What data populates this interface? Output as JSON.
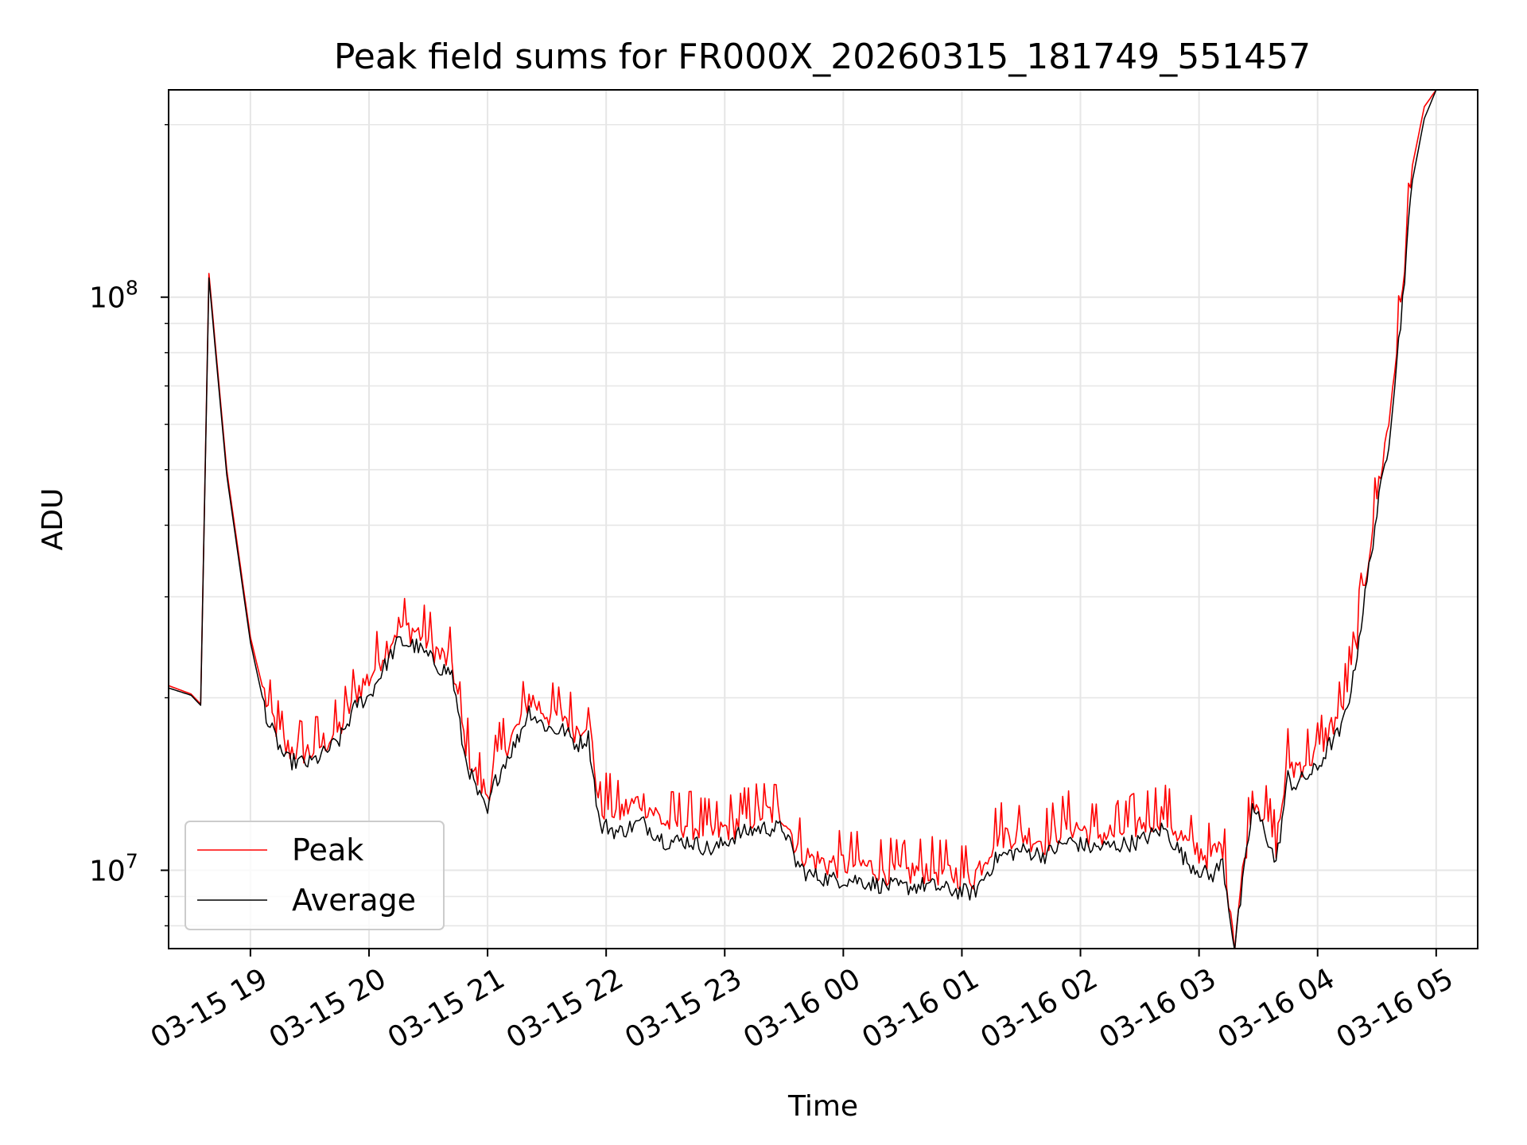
{
  "chart_data": {
    "type": "line",
    "title": "Peak field sums for FR000X_20260315_181749_551457",
    "xlabel": "Time",
    "ylabel": "ADU",
    "yscale": "log",
    "ylim": [
      7300000,
      230000000
    ],
    "xlim_hours": [
      -0.69,
      10.35
    ],
    "x_unit": "hours after 03-15 19:00",
    "x_ticks": [
      {
        "label": "03-15 19",
        "hours": 0
      },
      {
        "label": "03-15 20",
        "hours": 1
      },
      {
        "label": "03-15 21",
        "hours": 2
      },
      {
        "label": "03-15 22",
        "hours": 3
      },
      {
        "label": "03-15 23",
        "hours": 4
      },
      {
        "label": "03-16 00",
        "hours": 5
      },
      {
        "label": "03-16 01",
        "hours": 6
      },
      {
        "label": "03-16 02",
        "hours": 7
      },
      {
        "label": "03-16 03",
        "hours": 8
      },
      {
        "label": "03-16 04",
        "hours": 9
      },
      {
        "label": "03-16 05",
        "hours": 10
      }
    ],
    "y_ticks": [
      {
        "base": "10",
        "exp": "7",
        "value": 10000000
      },
      {
        "base": "10",
        "exp": "8",
        "value": 100000000
      }
    ],
    "grid": true,
    "legend_position": "lower-left",
    "series": [
      {
        "name": "Peak",
        "color": "#ff0000",
        "x": [
          -0.69,
          -0.5,
          -0.42,
          -0.35,
          -0.2,
          0,
          0.15,
          0.3,
          0.5,
          0.6,
          0.75,
          0.9,
          1.0,
          1.1,
          1.25,
          1.4,
          1.5,
          1.6,
          1.7,
          1.8,
          1.9,
          2.0,
          2.05,
          2.15,
          2.25,
          2.35,
          2.45,
          2.55,
          2.65,
          2.75,
          2.85,
          2.95,
          3.0,
          3.1,
          3.3,
          3.5,
          3.7,
          3.9,
          4.1,
          4.3,
          4.5,
          4.6,
          4.7,
          4.8,
          4.9,
          5.1,
          5.3,
          5.5,
          5.7,
          5.9,
          6.1,
          6.3,
          6.5,
          6.7,
          6.9,
          7.1,
          7.3,
          7.5,
          7.7,
          7.9,
          8.1,
          8.2,
          8.3,
          8.45,
          8.55,
          8.65,
          8.7,
          8.75,
          8.8,
          8.9,
          9.0,
          9.1,
          9.2,
          9.3,
          9.4,
          9.5,
          9.6,
          9.7,
          9.8,
          9.9,
          10.0,
          10.1,
          10.2,
          10.35
        ],
        "values": [
          21000000,
          20300000,
          19500000,
          110000000,
          50000000,
          25500000,
          19000000,
          16200000,
          16000000,
          16500000,
          17500000,
          20500000,
          21500000,
          23500000,
          26500000,
          26000000,
          25000000,
          23500000,
          23000000,
          17000000,
          14500000,
          13500000,
          15000000,
          16500000,
          17500000,
          20000000,
          19000000,
          18500000,
          18500000,
          17500000,
          18500000,
          12500000,
          13000000,
          12500000,
          13200000,
          12000000,
          12000000,
          11500000,
          12000000,
          12500000,
          12500000,
          11000000,
          10500000,
          10300000,
          10200000,
          10200000,
          10000000,
          9800000,
          10000000,
          9800000,
          9700000,
          11500000,
          11500000,
          11200000,
          12000000,
          11500000,
          11500000,
          12000000,
          12500000,
          11000000,
          10500000,
          11000000,
          7500000,
          13500000,
          12500000,
          11000000,
          13000000,
          15500000,
          15000000,
          15500000,
          16000000,
          17500000,
          19000000,
          23000000,
          32000000,
          45000000,
          60000000,
          95000000,
          170000000,
          215000000,
          230000000,
          230000000,
          230000000,
          230000000
        ]
      },
      {
        "name": "Average",
        "color": "#000000",
        "x": [
          -0.69,
          -0.5,
          -0.42,
          -0.35,
          -0.2,
          0,
          0.15,
          0.3,
          0.5,
          0.6,
          0.75,
          0.9,
          1.0,
          1.1,
          1.25,
          1.4,
          1.5,
          1.6,
          1.7,
          1.8,
          1.9,
          2.0,
          2.05,
          2.15,
          2.25,
          2.35,
          2.45,
          2.55,
          2.65,
          2.75,
          2.85,
          2.95,
          3.0,
          3.1,
          3.3,
          3.5,
          3.7,
          3.9,
          4.1,
          4.3,
          4.5,
          4.6,
          4.7,
          4.8,
          4.9,
          5.1,
          5.3,
          5.5,
          5.7,
          5.9,
          6.1,
          6.3,
          6.5,
          6.7,
          6.9,
          7.1,
          7.3,
          7.5,
          7.7,
          7.9,
          8.1,
          8.2,
          8.3,
          8.45,
          8.55,
          8.65,
          8.7,
          8.75,
          8.8,
          8.9,
          9.0,
          9.1,
          9.2,
          9.3,
          9.4,
          9.5,
          9.6,
          9.7,
          9.8,
          9.9,
          10.0,
          10.1,
          10.2,
          10.35
        ],
        "values": [
          20800000,
          20200000,
          19400000,
          108000000,
          49000000,
          25000000,
          18000000,
          15500000,
          15300000,
          15800000,
          16800000,
          19500000,
          20000000,
          22000000,
          25000000,
          24500000,
          23500000,
          22500000,
          22000000,
          16000000,
          13800000,
          12500000,
          14000000,
          15500000,
          16800000,
          19000000,
          18000000,
          17500000,
          17500000,
          16500000,
          17000000,
          11800000,
          11900000,
          11600000,
          12100000,
          11200000,
          11200000,
          10800000,
          11500000,
          11800000,
          11800000,
          10300000,
          9800000,
          9700000,
          9600000,
          9600000,
          9400000,
          9300000,
          9400000,
          9200000,
          9100000,
          10500000,
          10800000,
          10600000,
          11200000,
          10900000,
          11000000,
          11200000,
          11800000,
          10300000,
          9700000,
          10300000,
          7300000,
          12800000,
          11800000,
          10200000,
          12200000,
          14500000,
          14000000,
          14500000,
          15000000,
          16500000,
          17500000,
          21500000,
          30000000,
          42000000,
          56000000,
          90000000,
          160000000,
          205000000,
          230000000,
          230000000,
          230000000,
          230000000
        ]
      }
    ]
  }
}
